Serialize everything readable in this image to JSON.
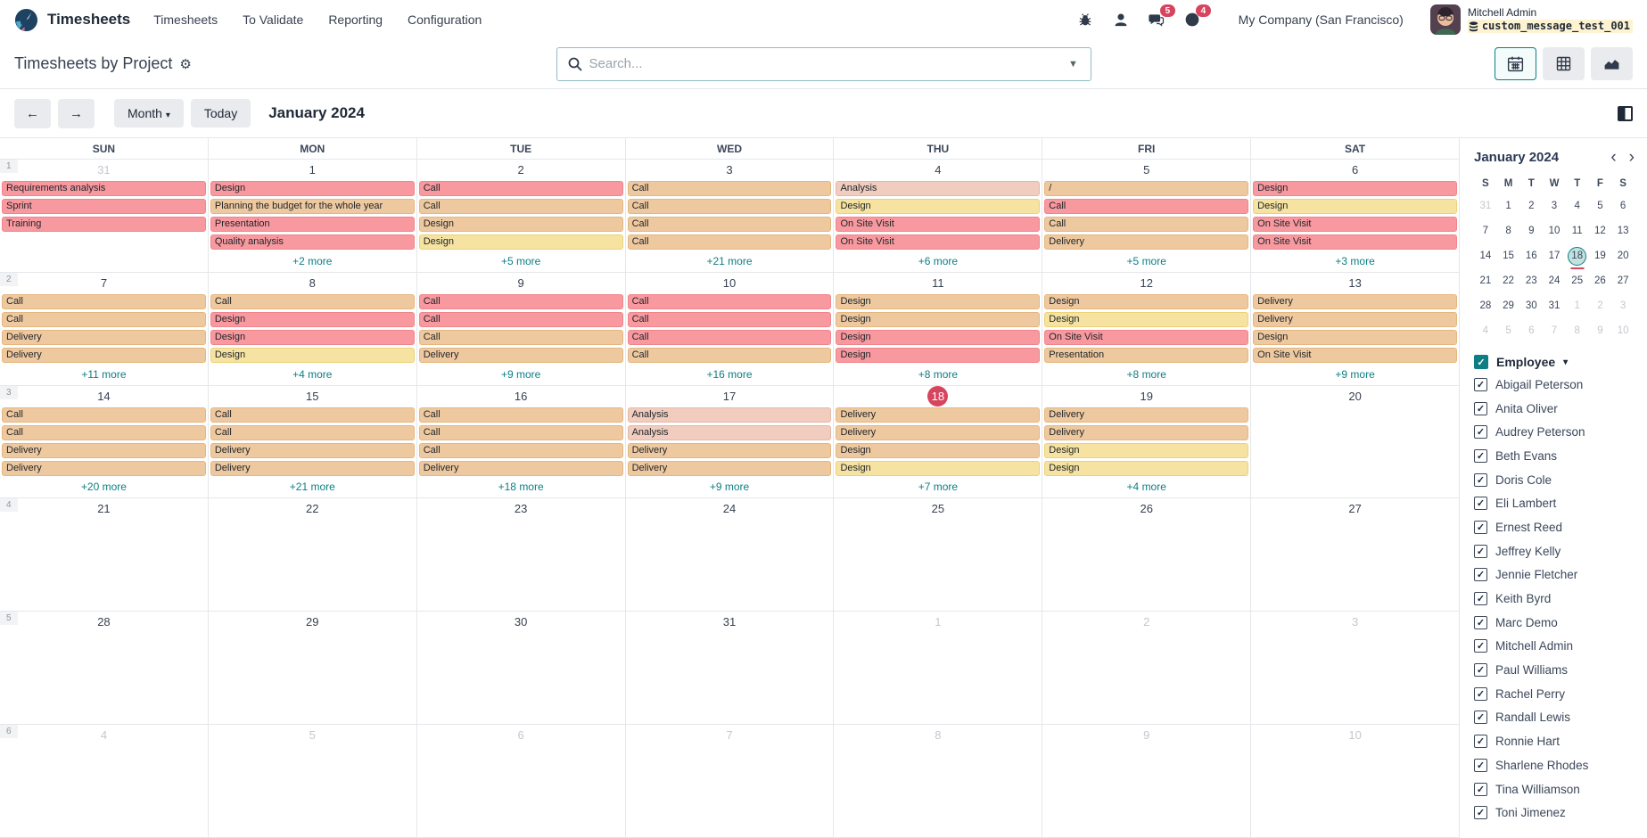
{
  "navbar": {
    "app_name": "Timesheets",
    "menus": [
      "Timesheets",
      "To Validate",
      "Reporting",
      "Configuration"
    ],
    "badges": {
      "messages": "5",
      "activities": "4"
    },
    "company": "My Company (San Francisco)",
    "user": {
      "name": "Mitchell Admin",
      "subtitle": "custom_message_test_001"
    }
  },
  "control": {
    "title": "Timesheets by Project",
    "search_placeholder": "Search...",
    "views": [
      "calendar",
      "grid",
      "graph"
    ],
    "active_view": "calendar"
  },
  "toolbar": {
    "prev": "←",
    "next": "→",
    "scale_label": "Month",
    "today_label": "Today",
    "period": "January 2024"
  },
  "icons": {
    "navbar": [
      "bug-icon",
      "employees-icon",
      "messages-icon",
      "activities-icon"
    ],
    "views": [
      "calendar-view-icon",
      "grid-view-icon",
      "graph-view-icon"
    ],
    "other": [
      "search-icon",
      "gear-icon",
      "database-icon",
      "panel-toggle-icon"
    ]
  },
  "colors": {
    "accent_teal": "#0d7e84",
    "event_red": "#f7999f",
    "event_tan": "#eec9a0",
    "event_yellow": "#f6e3a1",
    "event_rose": "#f1cdbf",
    "today_badge": "#d6455d",
    "notification_badge": "#d6455d"
  },
  "calendar": {
    "day_headers": [
      "SUN",
      "MON",
      "TUE",
      "WED",
      "THU",
      "FRI",
      "SAT"
    ],
    "weeks": [
      {
        "num": "1",
        "days": [
          {
            "date": "31",
            "muted": true,
            "events": [
              {
                "t": "Requirements analysis",
                "c": "red"
              },
              {
                "t": "Sprint",
                "c": "red"
              },
              {
                "t": "Training",
                "c": "red"
              }
            ],
            "more": ""
          },
          {
            "date": "1",
            "events": [
              {
                "t": "Design",
                "c": "red"
              },
              {
                "t": "Planning the budget for the whole year",
                "c": "tan"
              },
              {
                "t": "Presentation",
                "c": "red"
              },
              {
                "t": "Quality analysis",
                "c": "red"
              }
            ],
            "more": "+2 more"
          },
          {
            "date": "2",
            "events": [
              {
                "t": "Call",
                "c": "red"
              },
              {
                "t": "Call",
                "c": "tan"
              },
              {
                "t": "Design",
                "c": "tan"
              },
              {
                "t": "Design",
                "c": "yellow"
              }
            ],
            "more": "+5 more"
          },
          {
            "date": "3",
            "events": [
              {
                "t": "Call",
                "c": "tan"
              },
              {
                "t": "Call",
                "c": "tan"
              },
              {
                "t": "Call",
                "c": "tan"
              },
              {
                "t": "Call",
                "c": "tan"
              }
            ],
            "more": "+21 more"
          },
          {
            "date": "4",
            "events": [
              {
                "t": "Analysis",
                "c": "rose"
              },
              {
                "t": "Design",
                "c": "yellow"
              },
              {
                "t": "On Site Visit",
                "c": "red"
              },
              {
                "t": "On Site Visit",
                "c": "red"
              }
            ],
            "more": "+6 more"
          },
          {
            "date": "5",
            "events": [
              {
                "t": "/",
                "c": "tan"
              },
              {
                "t": "Call",
                "c": "red"
              },
              {
                "t": "Call",
                "c": "tan"
              },
              {
                "t": "Delivery",
                "c": "tan"
              }
            ],
            "more": "+5 more"
          },
          {
            "date": "6",
            "events": [
              {
                "t": "Design",
                "c": "red"
              },
              {
                "t": "Design",
                "c": "yellow"
              },
              {
                "t": "On Site Visit",
                "c": "red"
              },
              {
                "t": "On Site Visit",
                "c": "red"
              }
            ],
            "more": "+3 more"
          }
        ]
      },
      {
        "num": "2",
        "days": [
          {
            "date": "7",
            "events": [
              {
                "t": "Call",
                "c": "tan"
              },
              {
                "t": "Call",
                "c": "tan"
              },
              {
                "t": "Delivery",
                "c": "tan"
              },
              {
                "t": "Delivery",
                "c": "tan"
              }
            ],
            "more": "+11 more"
          },
          {
            "date": "8",
            "events": [
              {
                "t": "Call",
                "c": "tan"
              },
              {
                "t": "Design",
                "c": "red"
              },
              {
                "t": "Design",
                "c": "red"
              },
              {
                "t": "Design",
                "c": "yellow"
              }
            ],
            "more": "+4 more"
          },
          {
            "date": "9",
            "events": [
              {
                "t": "Call",
                "c": "red"
              },
              {
                "t": "Call",
                "c": "red"
              },
              {
                "t": "Call",
                "c": "tan"
              },
              {
                "t": "Delivery",
                "c": "tan"
              }
            ],
            "more": "+9 more"
          },
          {
            "date": "10",
            "events": [
              {
                "t": "Call",
                "c": "red"
              },
              {
                "t": "Call",
                "c": "red"
              },
              {
                "t": "Call",
                "c": "red"
              },
              {
                "t": "Call",
                "c": "tan"
              }
            ],
            "more": "+16 more"
          },
          {
            "date": "11",
            "events": [
              {
                "t": "Design",
                "c": "tan"
              },
              {
                "t": "Design",
                "c": "tan"
              },
              {
                "t": "Design",
                "c": "red"
              },
              {
                "t": "Design",
                "c": "red"
              }
            ],
            "more": "+8 more"
          },
          {
            "date": "12",
            "events": [
              {
                "t": "Design",
                "c": "tan"
              },
              {
                "t": "Design",
                "c": "yellow"
              },
              {
                "t": "On Site Visit",
                "c": "red"
              },
              {
                "t": "Presentation",
                "c": "tan"
              }
            ],
            "more": "+8 more"
          },
          {
            "date": "13",
            "events": [
              {
                "t": "Delivery",
                "c": "tan"
              },
              {
                "t": "Delivery",
                "c": "tan"
              },
              {
                "t": "Design",
                "c": "tan"
              },
              {
                "t": "On Site Visit",
                "c": "tan"
              }
            ],
            "more": "+9 more"
          }
        ]
      },
      {
        "num": "3",
        "days": [
          {
            "date": "14",
            "events": [
              {
                "t": "Call",
                "c": "tan"
              },
              {
                "t": "Call",
                "c": "tan"
              },
              {
                "t": "Delivery",
                "c": "tan"
              },
              {
                "t": "Delivery",
                "c": "tan"
              }
            ],
            "more": "+20 more"
          },
          {
            "date": "15",
            "events": [
              {
                "t": "Call",
                "c": "tan"
              },
              {
                "t": "Call",
                "c": "tan"
              },
              {
                "t": "Delivery",
                "c": "tan"
              },
              {
                "t": "Delivery",
                "c": "tan"
              }
            ],
            "more": "+21 more"
          },
          {
            "date": "16",
            "events": [
              {
                "t": "Call",
                "c": "tan"
              },
              {
                "t": "Call",
                "c": "tan"
              },
              {
                "t": "Call",
                "c": "tan"
              },
              {
                "t": "Delivery",
                "c": "tan"
              }
            ],
            "more": "+18 more"
          },
          {
            "date": "17",
            "events": [
              {
                "t": "Analysis",
                "c": "rose"
              },
              {
                "t": "Analysis",
                "c": "rose"
              },
              {
                "t": "Delivery",
                "c": "tan"
              },
              {
                "t": "Delivery",
                "c": "tan"
              }
            ],
            "more": "+9 more"
          },
          {
            "date": "18",
            "today": true,
            "events": [
              {
                "t": "Delivery",
                "c": "tan"
              },
              {
                "t": "Delivery",
                "c": "tan"
              },
              {
                "t": "Design",
                "c": "tan"
              },
              {
                "t": "Design",
                "c": "yellow"
              }
            ],
            "more": "+7 more"
          },
          {
            "date": "19",
            "events": [
              {
                "t": "Delivery",
                "c": "tan"
              },
              {
                "t": "Delivery",
                "c": "tan"
              },
              {
                "t": "Design",
                "c": "yellow"
              },
              {
                "t": "Design",
                "c": "yellow"
              }
            ],
            "more": "+4 more"
          },
          {
            "date": "20",
            "events": [],
            "more": ""
          }
        ]
      },
      {
        "num": "4",
        "days": [
          {
            "date": "21",
            "events": [],
            "more": ""
          },
          {
            "date": "22",
            "events": [],
            "more": ""
          },
          {
            "date": "23",
            "events": [],
            "more": ""
          },
          {
            "date": "24",
            "events": [],
            "more": ""
          },
          {
            "date": "25",
            "events": [],
            "more": ""
          },
          {
            "date": "26",
            "events": [],
            "more": ""
          },
          {
            "date": "27",
            "events": [],
            "more": ""
          }
        ]
      },
      {
        "num": "5",
        "days": [
          {
            "date": "28",
            "events": [],
            "more": ""
          },
          {
            "date": "29",
            "events": [],
            "more": ""
          },
          {
            "date": "30",
            "events": [],
            "more": ""
          },
          {
            "date": "31",
            "events": [],
            "more": ""
          },
          {
            "date": "1",
            "muted": true,
            "events": [],
            "more": ""
          },
          {
            "date": "2",
            "muted": true,
            "events": [],
            "more": ""
          },
          {
            "date": "3",
            "muted": true,
            "events": [],
            "more": ""
          }
        ]
      },
      {
        "num": "6",
        "days": [
          {
            "date": "4",
            "muted": true,
            "events": [],
            "more": ""
          },
          {
            "date": "5",
            "muted": true,
            "events": [],
            "more": ""
          },
          {
            "date": "6",
            "muted": true,
            "events": [],
            "more": ""
          },
          {
            "date": "7",
            "muted": true,
            "events": [],
            "more": ""
          },
          {
            "date": "8",
            "muted": true,
            "events": [],
            "more": ""
          },
          {
            "date": "9",
            "muted": true,
            "events": [],
            "more": ""
          },
          {
            "date": "10",
            "muted": true,
            "events": [],
            "more": ""
          }
        ]
      }
    ]
  },
  "sidebar": {
    "mini_calendar": {
      "title": "January 2024",
      "dow": [
        "S",
        "M",
        "T",
        "W",
        "T",
        "F",
        "S"
      ],
      "rows": [
        [
          {
            "d": "31",
            "m": true
          },
          {
            "d": "1"
          },
          {
            "d": "2"
          },
          {
            "d": "3"
          },
          {
            "d": "4"
          },
          {
            "d": "5"
          },
          {
            "d": "6"
          }
        ],
        [
          {
            "d": "7"
          },
          {
            "d": "8"
          },
          {
            "d": "9"
          },
          {
            "d": "10"
          },
          {
            "d": "11"
          },
          {
            "d": "12"
          },
          {
            "d": "13"
          }
        ],
        [
          {
            "d": "14"
          },
          {
            "d": "15"
          },
          {
            "d": "16"
          },
          {
            "d": "17"
          },
          {
            "d": "18",
            "sel": true
          },
          {
            "d": "19"
          },
          {
            "d": "20"
          }
        ],
        [
          {
            "d": "21"
          },
          {
            "d": "22"
          },
          {
            "d": "23"
          },
          {
            "d": "24"
          },
          {
            "d": "25"
          },
          {
            "d": "26"
          },
          {
            "d": "27"
          }
        ],
        [
          {
            "d": "28"
          },
          {
            "d": "29"
          },
          {
            "d": "30"
          },
          {
            "d": "31"
          },
          {
            "d": "1",
            "m": true
          },
          {
            "d": "2",
            "m": true
          },
          {
            "d": "3",
            "m": true
          }
        ],
        [
          {
            "d": "4",
            "m": true
          },
          {
            "d": "5",
            "m": true
          },
          {
            "d": "6",
            "m": true
          },
          {
            "d": "7",
            "m": true
          },
          {
            "d": "8",
            "m": true
          },
          {
            "d": "9",
            "m": true
          },
          {
            "d": "10",
            "m": true
          }
        ]
      ]
    },
    "employee_filter": {
      "label": "Employee",
      "items": [
        "Abigail Peterson",
        "Anita Oliver",
        "Audrey Peterson",
        "Beth Evans",
        "Doris Cole",
        "Eli Lambert",
        "Ernest Reed",
        "Jeffrey Kelly",
        "Jennie Fletcher",
        "Keith Byrd",
        "Marc Demo",
        "Mitchell Admin",
        "Paul Williams",
        "Rachel Perry",
        "Randall Lewis",
        "Ronnie Hart",
        "Sharlene Rhodes",
        "Tina Williamson",
        "Toni Jimenez"
      ]
    }
  }
}
